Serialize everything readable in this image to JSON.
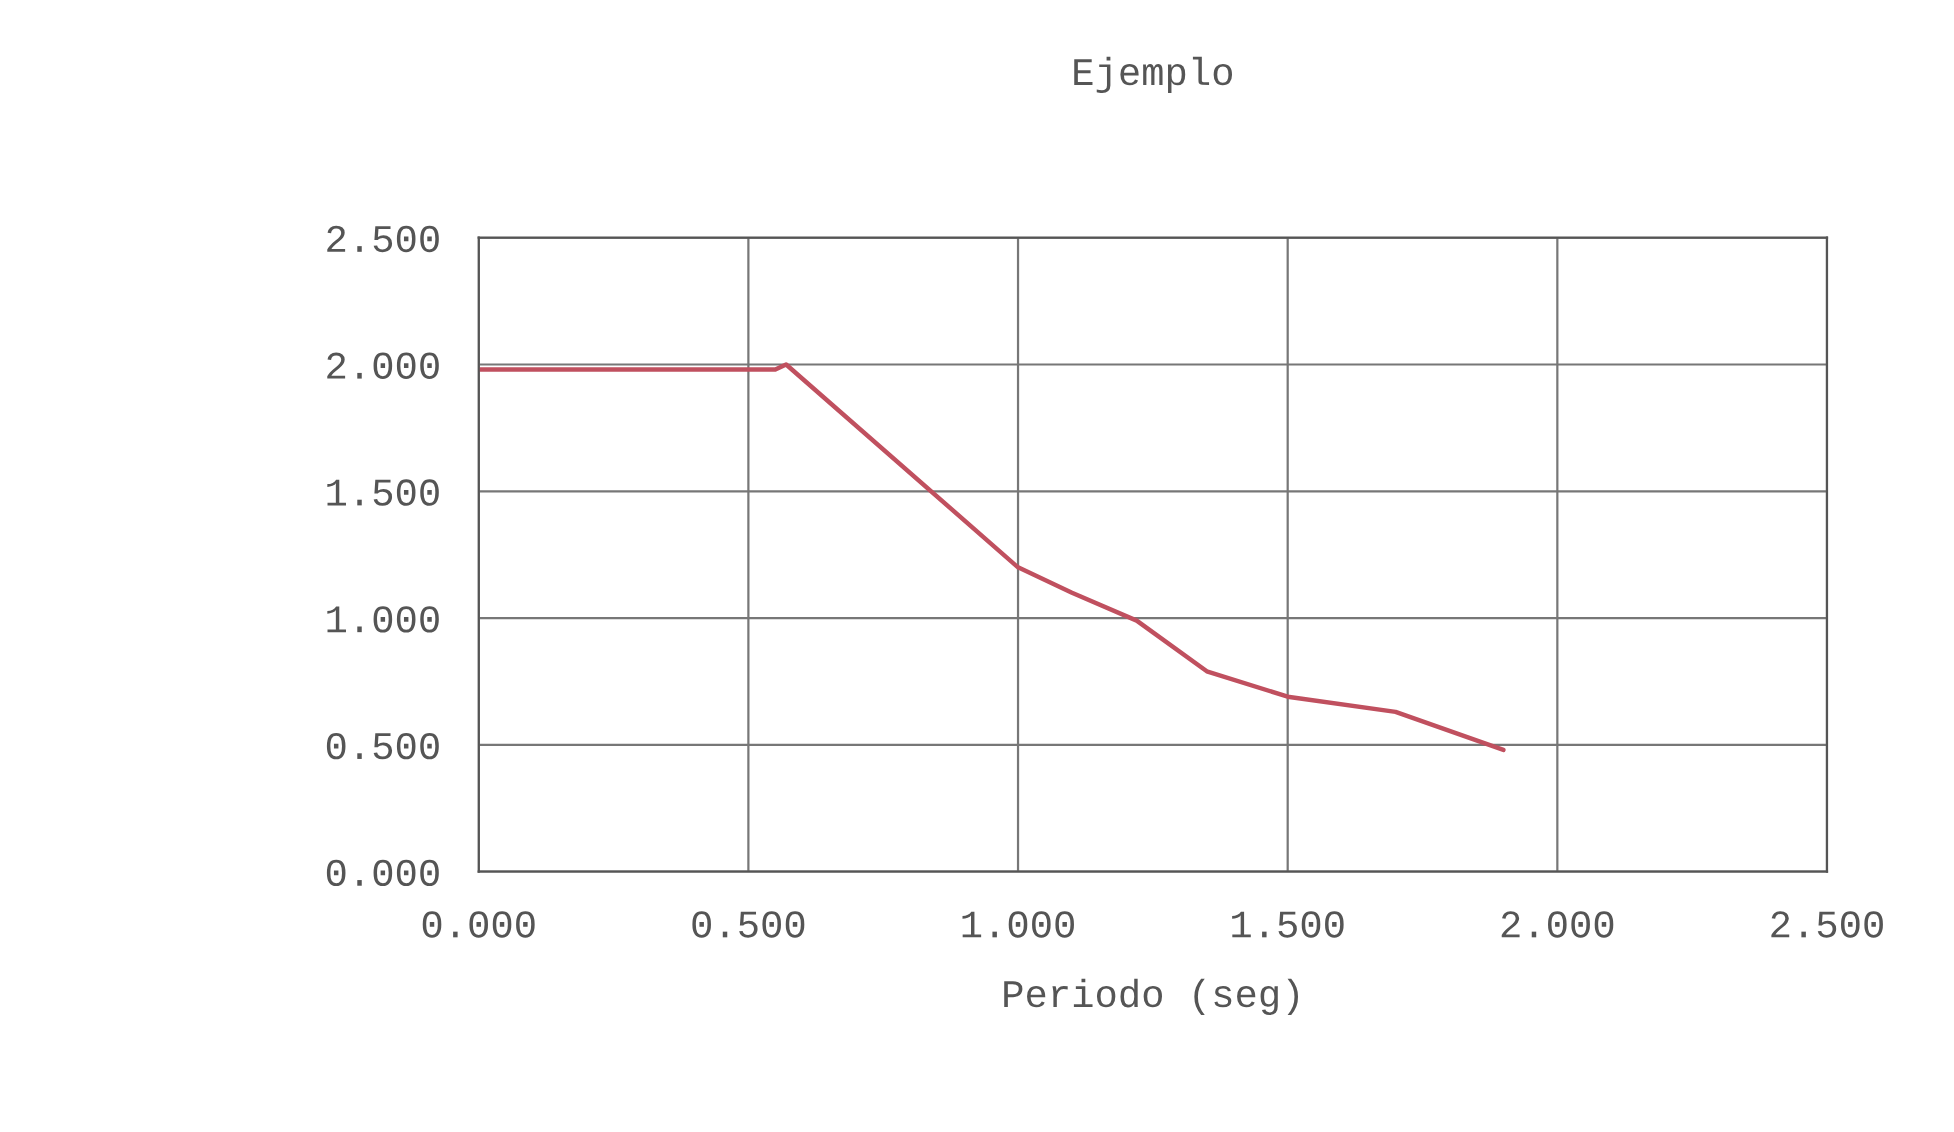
{
  "chart_data": {
    "type": "line",
    "title": "Ejemplo",
    "xlabel": "Periodo (seg)",
    "x": [
      0,
      0.55,
      0.57,
      1.0,
      1.1,
      1.22,
      1.35,
      1.5,
      1.7,
      1.9
    ],
    "series": [
      {
        "color": "#c0505f",
        "values": [
          1.98,
          1.98,
          2.0,
          1.2,
          1.1,
          0.99,
          0.79,
          0.69,
          0.63,
          0.48
        ]
      }
    ],
    "xlim": [
      0,
      2.5
    ],
    "ylim": [
      0,
      2.5
    ],
    "xticks": [
      {
        "value": 0,
        "label": "0.000"
      },
      {
        "value": 0.5,
        "label": "0.500"
      },
      {
        "value": 1.0,
        "label": "1.000"
      },
      {
        "value": 1.5,
        "label": "1.500"
      },
      {
        "value": 2.0,
        "label": "2.000"
      },
      {
        "value": 2.5,
        "label": "2.500"
      }
    ],
    "yticks": [
      {
        "value": 0,
        "label": "0.000"
      },
      {
        "value": 0.5,
        "label": "0.500"
      },
      {
        "value": 1.0,
        "label": "1.000"
      },
      {
        "value": 1.5,
        "label": "1.500"
      },
      {
        "value": 2.0,
        "label": "2.000"
      },
      {
        "value": 2.5,
        "label": "2.500"
      }
    ],
    "grid": true,
    "legend": false
  }
}
